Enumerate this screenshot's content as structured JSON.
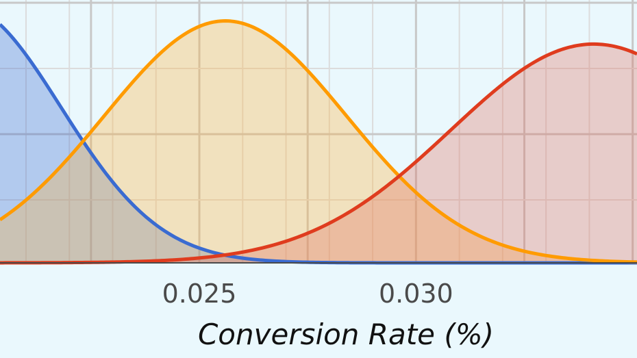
{
  "chart_data": {
    "type": "area",
    "xlabel": "Conversion Rate (%)",
    "ylabel": "",
    "xlim": [
      0.0204,
      0.0351
    ],
    "ylim": [
      0,
      1
    ],
    "grid": true,
    "x_ticks": [
      0.025,
      0.03
    ],
    "x_tick_labels": [
      "0.025",
      "0.030"
    ],
    "series": [
      {
        "color": "#3a6bd1",
        "fill": "#3a6bd1",
        "mean": 0.0195,
        "sd": 0.0023,
        "peak": 1.0
      },
      {
        "color": "#ff9b00",
        "fill": "#ffb13b",
        "mean": 0.0256,
        "sd": 0.0028,
        "peak": 0.94
      },
      {
        "color": "#df3c1e",
        "fill": "#df6f60",
        "mean": 0.0341,
        "sd": 0.0033,
        "peak": 0.85
      }
    ]
  }
}
